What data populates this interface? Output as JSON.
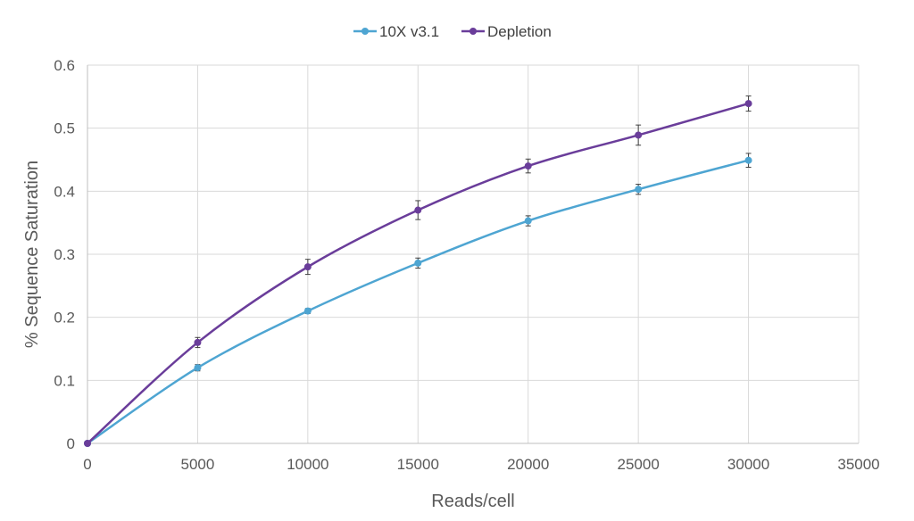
{
  "chart_data": {
    "type": "line",
    "xlabel": "Reads/cell",
    "ylabel": "% Sequence Saturation",
    "xlim": [
      0,
      35000
    ],
    "ylim": [
      0,
      0.6
    ],
    "x_ticks": [
      0,
      5000,
      10000,
      15000,
      20000,
      25000,
      30000,
      35000
    ],
    "y_ticks": [
      0,
      0.1,
      0.2,
      0.3,
      0.4,
      0.5,
      0.6
    ],
    "x_tick_labels": [
      "0",
      "5000",
      "10000",
      "15000",
      "20000",
      "25000",
      "30000",
      "35000"
    ],
    "y_tick_labels": [
      "0",
      "0.1",
      "0.2",
      "0.3",
      "0.4",
      "0.5",
      "0.6"
    ],
    "grid": true,
    "legend_position": "top-center",
    "smooth": true,
    "series": [
      {
        "name": "10X v3.1",
        "color": "#4ea5d2",
        "x": [
          0,
          5000,
          10000,
          15000,
          20000,
          25000,
          30000
        ],
        "y": [
          0,
          0.12,
          0.21,
          0.286,
          0.353,
          0.403,
          0.449
        ],
        "error": [
          0,
          0.005,
          0.004,
          0.008,
          0.008,
          0.008,
          0.011
        ]
      },
      {
        "name": "Depletion",
        "color": "#6a3d9a",
        "x": [
          0,
          5000,
          10000,
          15000,
          20000,
          25000,
          30000
        ],
        "y": [
          0,
          0.16,
          0.28,
          0.37,
          0.44,
          0.489,
          0.539
        ],
        "error": [
          0,
          0.008,
          0.012,
          0.015,
          0.011,
          0.016,
          0.012
        ]
      }
    ]
  }
}
